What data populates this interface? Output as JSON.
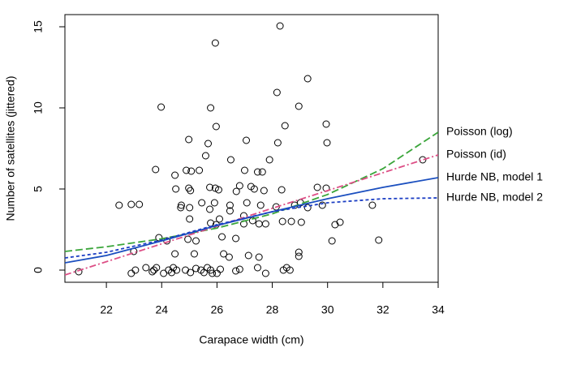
{
  "chart_data": {
    "type": "scatter",
    "xlabel": "Carapace width (cm)",
    "ylabel": "Number of satellites (jittered)",
    "xlim": [
      20.5,
      34
    ],
    "ylim": [
      -0.75,
      15.75
    ],
    "xticks": [
      22,
      24,
      26,
      28,
      30,
      32,
      34
    ],
    "yticks": [
      0,
      5,
      10,
      15
    ],
    "point_color": "#000000",
    "points": {
      "x": [
        21.0,
        22.46,
        22.9,
        23.19,
        22.99,
        22.9,
        23.05,
        23.43,
        23.72,
        23.66,
        23.81,
        23.98,
        23.78,
        23.9,
        24.19,
        24.07,
        24.25,
        24.42,
        24.36,
        24.54,
        24.48,
        24.51,
        24.71,
        24.69,
        24.48,
        24.89,
        25.07,
        24.98,
        25.04,
        24.98,
        25.01,
        25.01,
        24.95,
        25.18,
        25.24,
        24.86,
        25.04,
        25.24,
        25.42,
        25.36,
        25.45,
        25.59,
        25.68,
        25.74,
        25.74,
        25.77,
        25.77,
        25.53,
        25.65,
        25.77,
        25.83,
        25.94,
        25.97,
        25.94,
        26.06,
        25.91,
        26.09,
        25.97,
        26.0,
        26.12,
        26.18,
        26.24,
        26.44,
        26.5,
        26.47,
        26.47,
        26.68,
        26.68,
        26.82,
        26.7,
        26.82,
        26.97,
        26.97,
        27.0,
        27.06,
        27.08,
        27.23,
        27.35,
        27.14,
        27.29,
        27.52,
        27.47,
        27.47,
        27.52,
        27.64,
        27.7,
        27.58,
        27.76,
        27.9,
        27.76,
        28.14,
        28.17,
        28.2,
        28.28,
        28.34,
        28.37,
        28.4,
        28.52,
        28.64,
        28.46,
        28.69,
        28.81,
        29.02,
        28.96,
        28.96,
        28.96,
        29.05,
        29.28,
        29.28,
        29.63,
        29.81,
        29.95,
        29.98,
        29.95,
        30.16,
        30.27,
        30.45,
        31.62,
        31.85,
        33.44
      ],
      "y": [
        -0.1,
        4.0,
        4.05,
        4.05,
        1.15,
        -0.2,
        0,
        0.15,
        0,
        -0.1,
        0.15,
        10.05,
        6.2,
        2.0,
        1.8,
        -0.2,
        0,
        0.15,
        -0.15,
        0,
        5.85,
        5.0,
        4.0,
        3.85,
        1.0,
        6.15,
        6.1,
        8.05,
        4.9,
        5.05,
        3.85,
        3.15,
        1.9,
        1.0,
        1.8,
        0,
        -0.15,
        0.1,
        0,
        6.15,
        4.15,
        7.05,
        7.8,
        5.1,
        3.75,
        2.9,
        10.0,
        -0.15,
        0.15,
        0,
        -0.2,
        14.0,
        8.85,
        5.05,
        4.95,
        4.15,
        3.15,
        2.8,
        -0.2,
        0.05,
        2.05,
        1.0,
        0.8,
        6.8,
        4.0,
        3.65,
        1.95,
        -0.05,
        0.05,
        4.85,
        5.2,
        2.85,
        3.35,
        6.15,
        8.0,
        4.15,
        5.15,
        5.0,
        0.9,
        3.05,
        2.85,
        6.05,
        0.15,
        0.8,
        6.05,
        4.9,
        4.0,
        2.85,
        6.8,
        -0.2,
        3.9,
        10.95,
        7.85,
        15.05,
        4.95,
        3.0,
        0,
        0.15,
        0,
        8.9,
        3.0,
        4.0,
        4.15,
        10.1,
        1.1,
        0.85,
        2.95,
        11.8,
        3.85,
        5.1,
        4.0,
        9.0,
        7.85,
        5.05,
        1.8,
        2.8,
        2.95,
        4.0,
        1.85,
        6.8
      ]
    },
    "series": [
      {
        "name": "Poisson (log)",
        "color": "#3aa53a",
        "linestyle": "dashed",
        "x": [
          20.5,
          22,
          24,
          26,
          28,
          30,
          32,
          34
        ],
        "values": [
          1.15,
          1.44,
          1.93,
          2.59,
          3.47,
          4.66,
          6.25,
          8.5
        ]
      },
      {
        "name": "Poisson (id)",
        "color": "#dd4f86",
        "linestyle": "dashdot",
        "x": [
          20.5,
          22,
          24,
          26,
          28,
          30,
          32,
          34
        ],
        "values": [
          -0.3,
          0.52,
          1.62,
          2.71,
          3.81,
          4.9,
          6.0,
          7.1
        ]
      },
      {
        "name": "Hurde NB, model 1",
        "color": "#1b4fbf",
        "linestyle": "solid",
        "x": [
          20.5,
          22,
          24,
          26,
          28,
          30,
          32,
          34
        ],
        "values": [
          0.45,
          0.9,
          1.8,
          2.75,
          3.6,
          4.4,
          5.1,
          5.7
        ]
      },
      {
        "name": "Hurde NB, model 2",
        "color": "#1d3fc4",
        "linestyle": "dotted",
        "x": [
          20.5,
          22,
          24,
          26,
          28,
          30,
          32,
          34
        ],
        "values": [
          0.75,
          1.1,
          1.85,
          2.8,
          3.6,
          4.15,
          4.4,
          4.45
        ]
      }
    ]
  }
}
